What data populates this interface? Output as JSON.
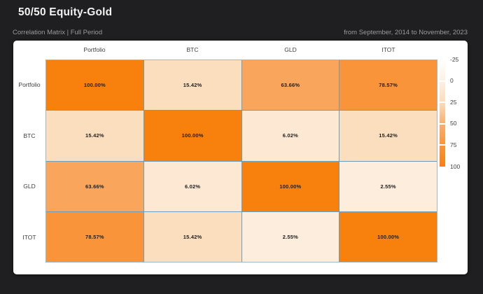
{
  "header": {
    "title": "50/50 Equity-Gold",
    "subtitle_left": "Correlation Matrix | Full Period",
    "subtitle_right": "from September, 2014 to November, 2023"
  },
  "colors": {
    "background": "#1F1F21",
    "card": "#FFFFFF",
    "accent_orange": "#F8810E",
    "grid_line": "#6E9DBB",
    "title_text": "#F2F2F2",
    "muted_text": "#9A9A9A",
    "label_text": "#3D3D3D"
  },
  "chart_data": {
    "type": "heatmap",
    "title": "Correlation Matrix | Full Period",
    "labels": [
      "Portfolio",
      "BTC",
      "GLD",
      "ITOT"
    ],
    "matrix_percent": [
      [
        100.0,
        15.42,
        63.66,
        78.57
      ],
      [
        15.42,
        100.0,
        6.02,
        15.42
      ],
      [
        63.66,
        6.02,
        100.0,
        2.55
      ],
      [
        78.57,
        15.42,
        2.55,
        100.0
      ]
    ],
    "cell_labels": [
      [
        "100.00%",
        "15.42%",
        "63.66%",
        "78.57%"
      ],
      [
        "15.42%",
        "100.00%",
        "6.02%",
        "15.42%"
      ],
      [
        "63.66%",
        "6.02%",
        "100.00%",
        "2.55%"
      ],
      [
        "78.57%",
        "15.42%",
        "2.55%",
        "100.00%"
      ]
    ],
    "cell_colors": [
      [
        "#F8810E",
        "#FBDEBE",
        "#FAA55C",
        "#F9943A"
      ],
      [
        "#FBDEBE",
        "#F8810E",
        "#FCE8D3",
        "#FBDEBE"
      ],
      [
        "#FAA55C",
        "#FCE8D3",
        "#F8810E",
        "#FDEDDC"
      ],
      [
        "#F9943A",
        "#FBDEBE",
        "#FDEDDC",
        "#F8810E"
      ]
    ],
    "colorscale": {
      "min": -25,
      "max": 100,
      "tick_labels": [
        "-25",
        "0",
        "25",
        "50",
        "75",
        "100"
      ],
      "gradient_stops": [
        "#FFFFFF",
        "#FEF0E3",
        "#FCDCBB",
        "#FAAF6E",
        "#F9953B",
        "#F8810E"
      ]
    },
    "grid_on": true,
    "legend_position": "right"
  }
}
